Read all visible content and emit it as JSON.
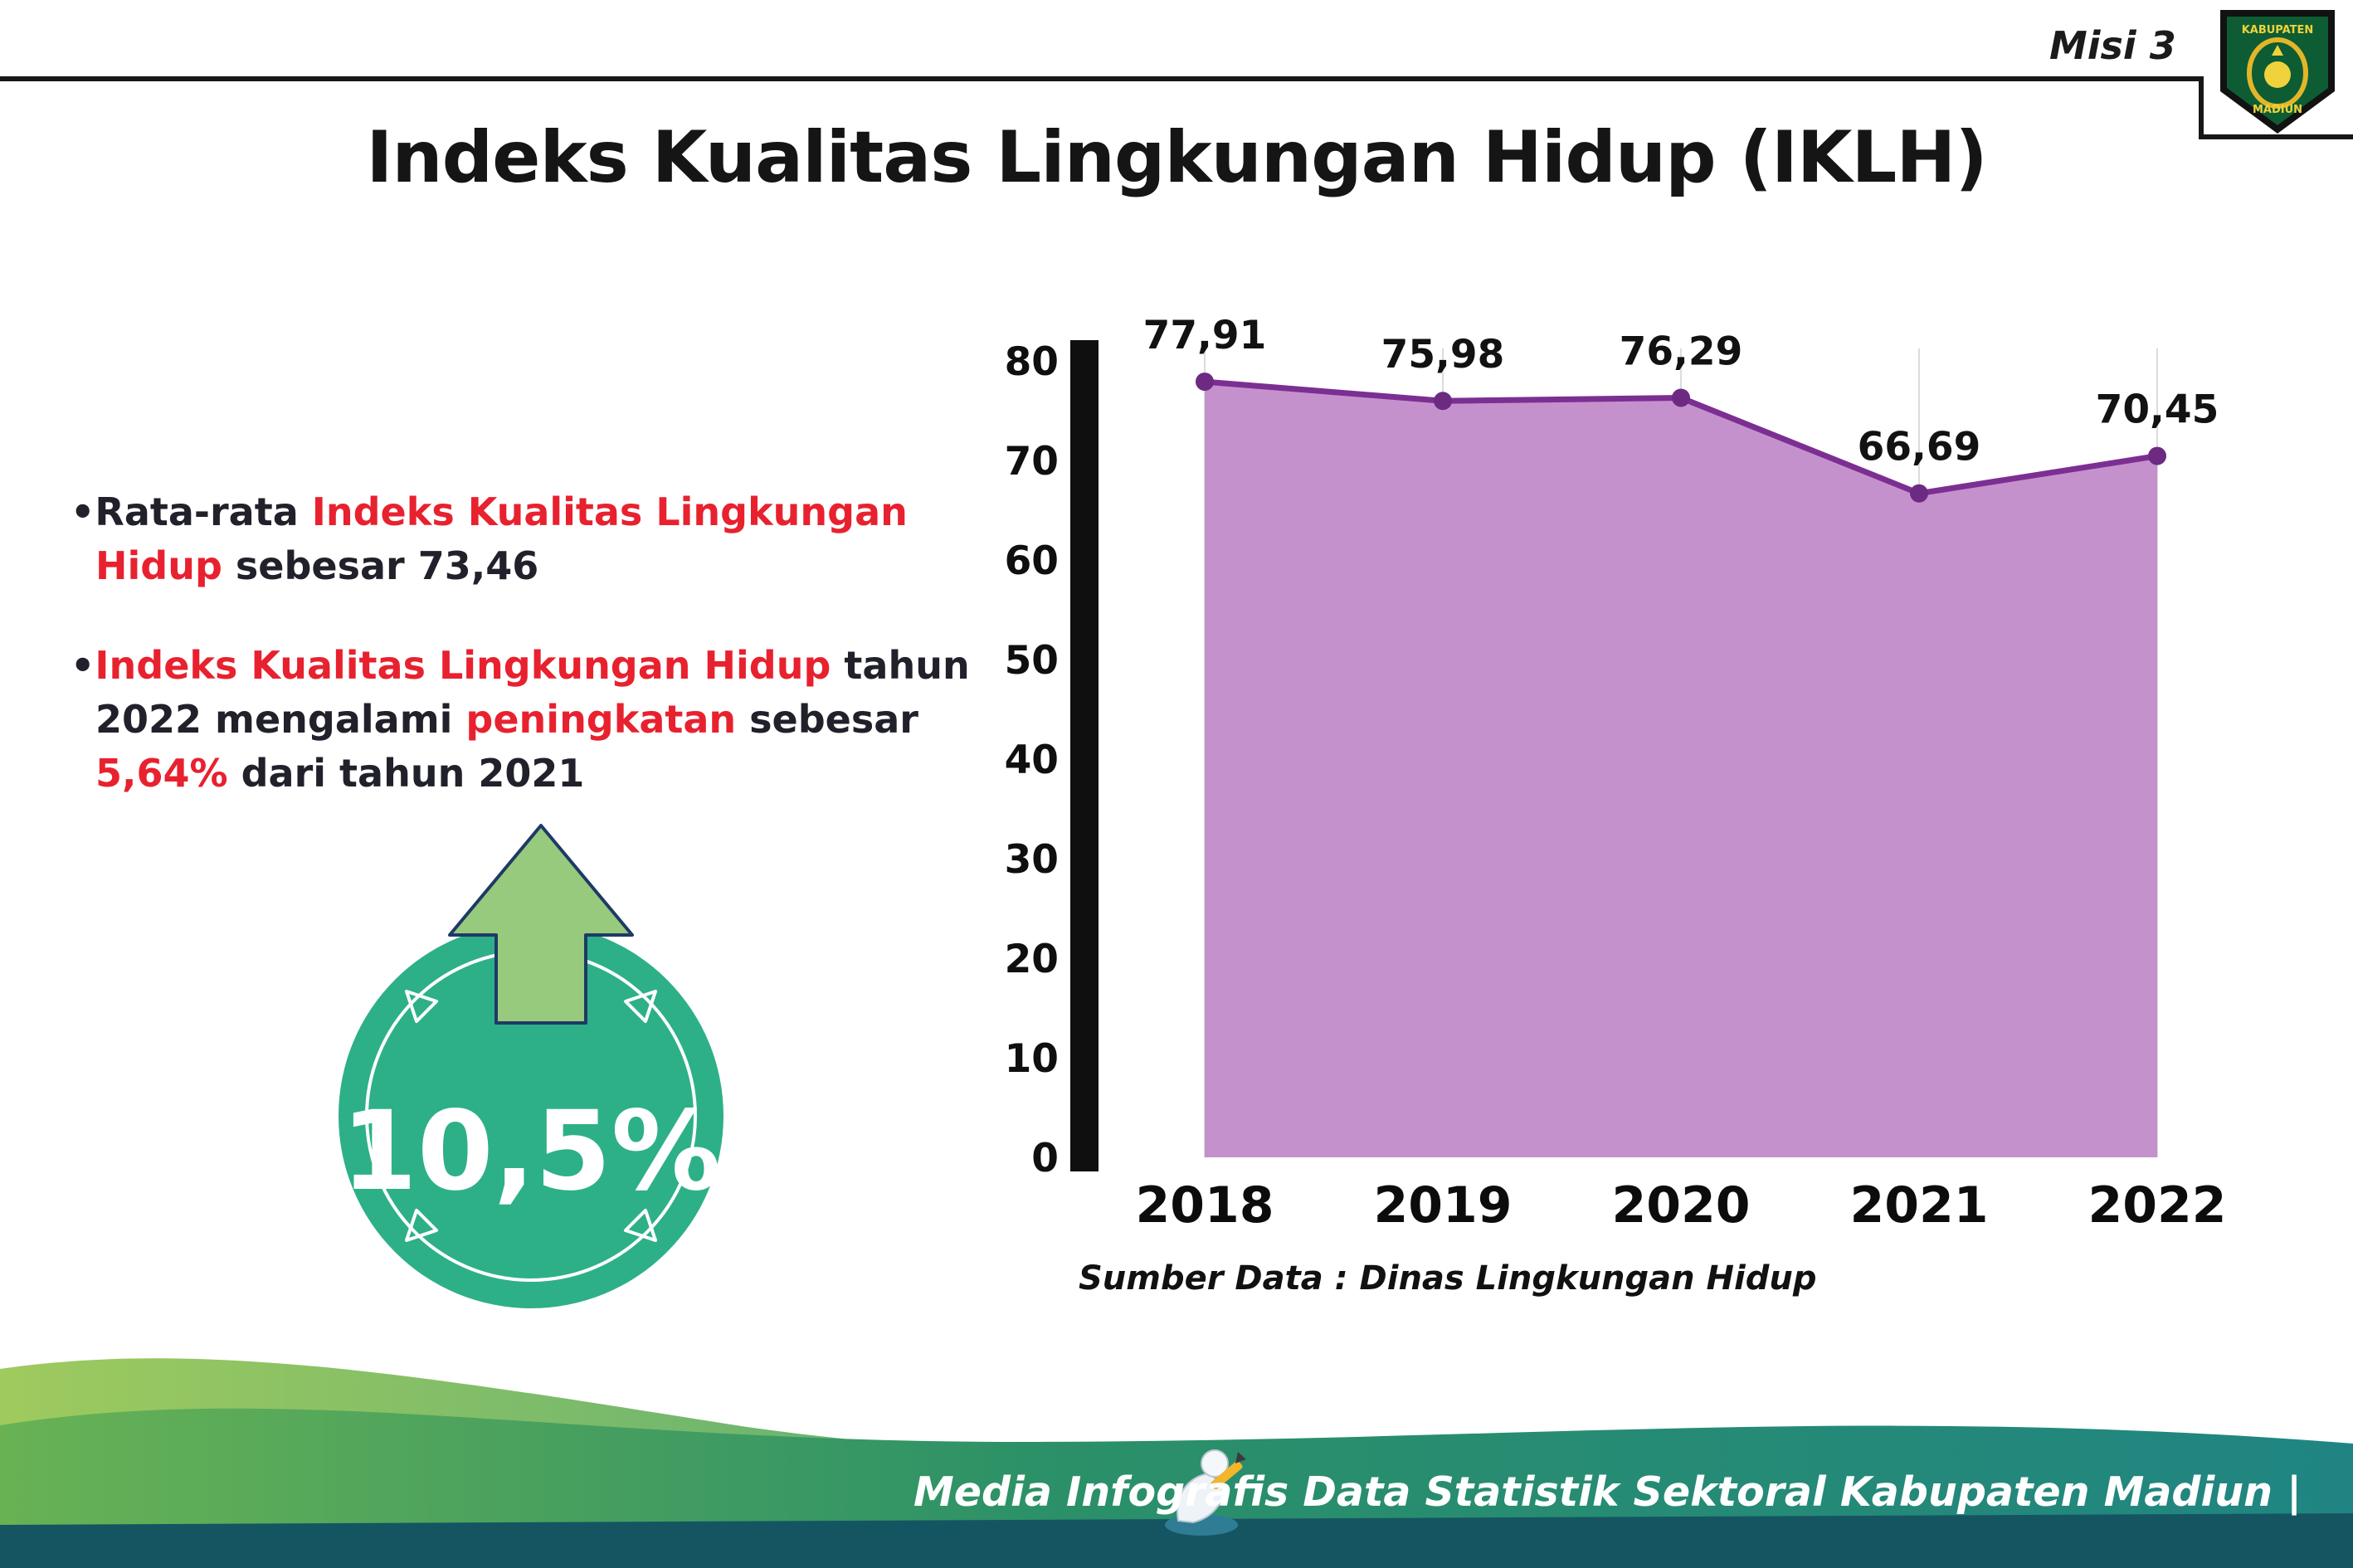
{
  "page": {
    "misi_label": "Misi 3",
    "title": "Indeks Kualitas Lingkungan Hidup (IKLH)"
  },
  "logo": {
    "top_text": "KABUPATEN",
    "bottom_text": "MADIUN"
  },
  "bullets": [
    {
      "segments": [
        {
          "text": "Rata-rata ",
          "red": false
        },
        {
          "text": "Indeks Kualitas Lingkungan Hidup",
          "red": true
        },
        {
          "text": " sebesar 73,46",
          "red": false
        }
      ]
    },
    {
      "segments": [
        {
          "text": "Indeks Kualitas Lingkungan Hidup",
          "red": true
        },
        {
          "text": " tahun 2022 mengalami ",
          "red": false
        },
        {
          "text": "peningkatan",
          "red": true
        },
        {
          "text": " sebesar ",
          "red": false
        },
        {
          "text": "5,64%",
          "red": true
        },
        {
          "text": " dari tahun 2021",
          "red": false
        }
      ]
    }
  ],
  "badge": {
    "value": "10,5%",
    "circle_color": "#2db088",
    "arrow_color": "#97ca7d",
    "arrow_outline": "#1e3a66"
  },
  "chart_data": {
    "type": "area",
    "categories": [
      "2018",
      "2019",
      "2020",
      "2021",
      "2022"
    ],
    "values": [
      77.91,
      75.98,
      76.29,
      66.69,
      70.45
    ],
    "point_labels": [
      "77,91",
      "75,98",
      "76,29",
      "66,69",
      "70,45"
    ],
    "title": "",
    "xlabel": "",
    "ylabel": "",
    "ylim": [
      0,
      80
    ],
    "yticks": [
      0,
      10,
      20,
      30,
      40,
      50,
      60,
      70,
      80
    ],
    "grid": "vertical-light",
    "line_color": "#7c2f92",
    "point_color": "#6d2a82",
    "fill_color": "#c591cd",
    "source": "Sumber Data : Dinas Lingkungan Hidup"
  },
  "footer": {
    "credit": "Media Infografis Data Statistik Sektoral Kabupaten Madiun |",
    "band_color": "#155561"
  }
}
